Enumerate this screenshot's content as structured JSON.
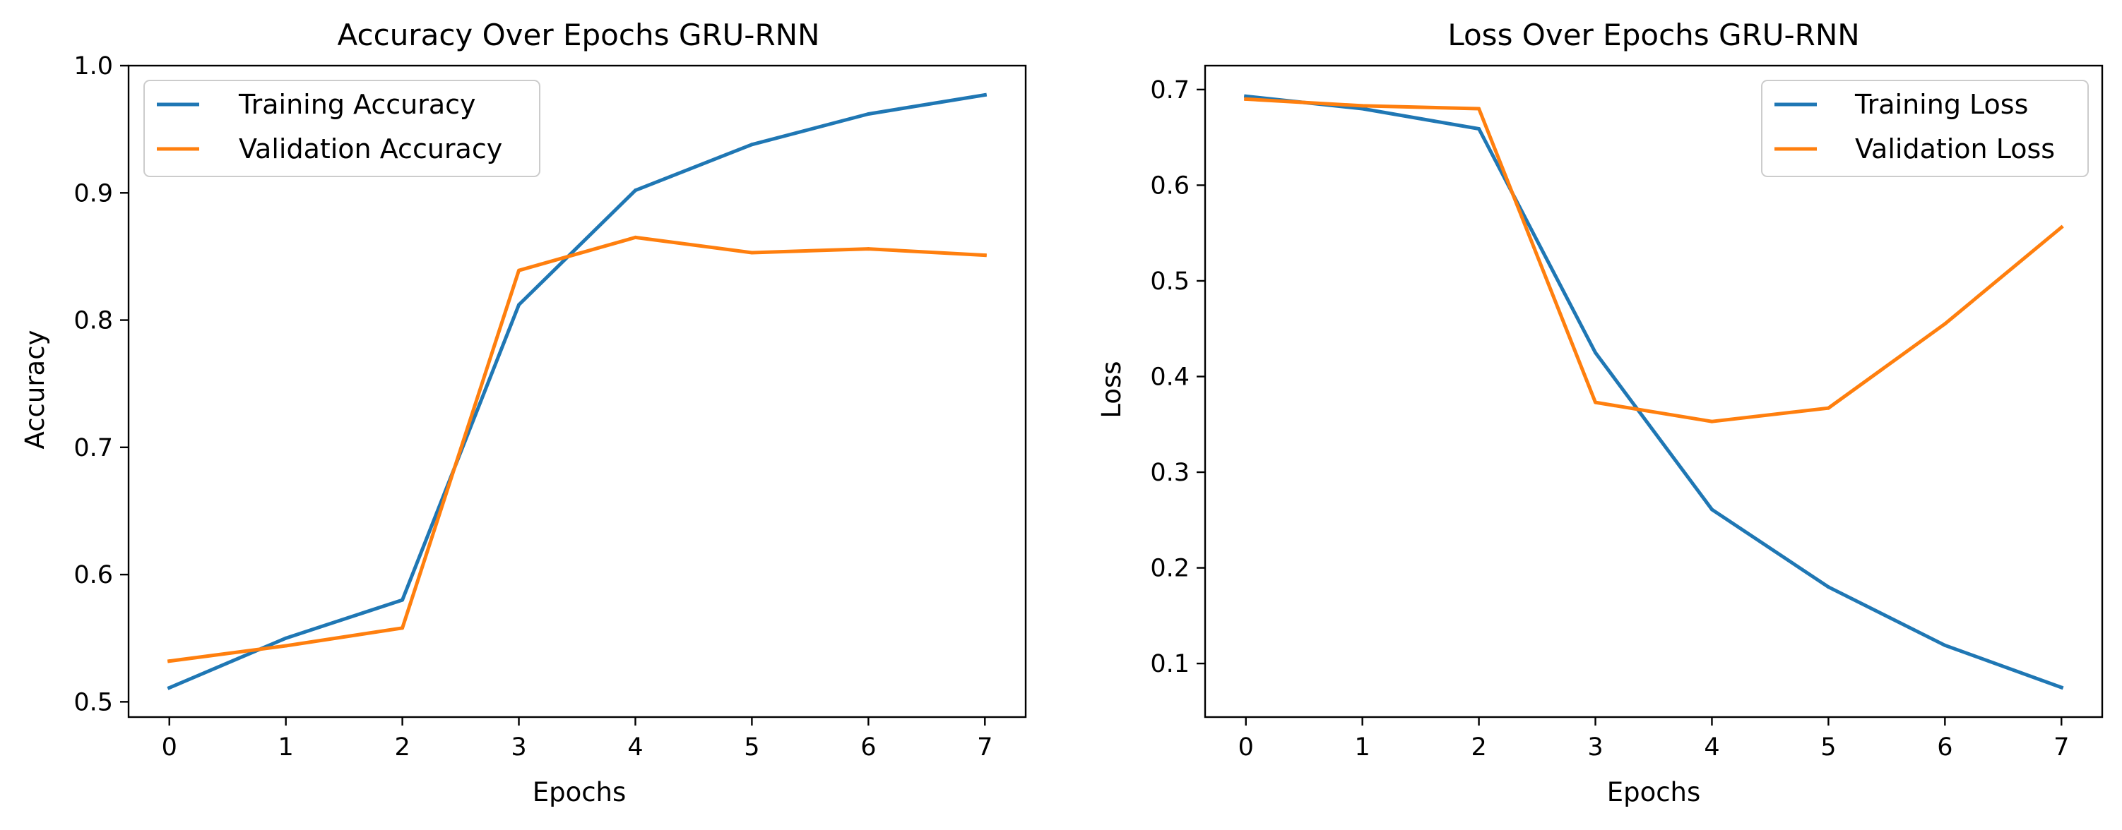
{
  "chart_data": [
    {
      "type": "line",
      "title": "Accuracy Over Epochs GRU-RNN",
      "xlabel": "Epochs",
      "ylabel": "Accuracy",
      "x": [
        0,
        1,
        2,
        3,
        4,
        5,
        6,
        7
      ],
      "xlim": [
        -0.35,
        7.35
      ],
      "ylim": [
        0.488,
        1.0
      ],
      "xticks": [
        0,
        1,
        2,
        3,
        4,
        5,
        6,
        7
      ],
      "xtick_labels": [
        "0",
        "1",
        "2",
        "3",
        "4",
        "5",
        "6",
        "7"
      ],
      "yticks": [
        0.5,
        0.6,
        0.7,
        0.8,
        0.9,
        1.0
      ],
      "ytick_labels": [
        "0.5",
        "0.6",
        "0.7",
        "0.8",
        "0.9",
        "1.0"
      ],
      "grid": false,
      "legend": "upper-left",
      "series": [
        {
          "name": "Training Accuracy",
          "color": "#1f77b4",
          "values": [
            0.511,
            0.55,
            0.58,
            0.812,
            0.902,
            0.938,
            0.962,
            0.977
          ]
        },
        {
          "name": "Validation Accuracy",
          "color": "#ff7f0e",
          "values": [
            0.532,
            0.544,
            0.558,
            0.839,
            0.865,
            0.853,
            0.856,
            0.851
          ]
        }
      ]
    },
    {
      "type": "line",
      "title": "Loss Over Epochs GRU-RNN",
      "xlabel": "Epochs",
      "ylabel": "Loss",
      "x": [
        0,
        1,
        2,
        3,
        4,
        5,
        6,
        7
      ],
      "xlim": [
        -0.35,
        7.35
      ],
      "ylim": [
        0.044,
        0.725
      ],
      "xticks": [
        0,
        1,
        2,
        3,
        4,
        5,
        6,
        7
      ],
      "xtick_labels": [
        "0",
        "1",
        "2",
        "3",
        "4",
        "5",
        "6",
        "7"
      ],
      "yticks": [
        0.1,
        0.2,
        0.3,
        0.4,
        0.5,
        0.6,
        0.7
      ],
      "ytick_labels": [
        "0.1",
        "0.2",
        "0.3",
        "0.4",
        "0.5",
        "0.6",
        "0.7"
      ],
      "grid": false,
      "legend": "upper-right",
      "series": [
        {
          "name": "Training Loss",
          "color": "#1f77b4",
          "values": [
            0.693,
            0.68,
            0.659,
            0.425,
            0.261,
            0.18,
            0.119,
            0.075
          ]
        },
        {
          "name": "Validation Loss",
          "color": "#ff7f0e",
          "values": [
            0.69,
            0.683,
            0.68,
            0.373,
            0.353,
            0.367,
            0.455,
            0.556
          ]
        }
      ]
    }
  ]
}
